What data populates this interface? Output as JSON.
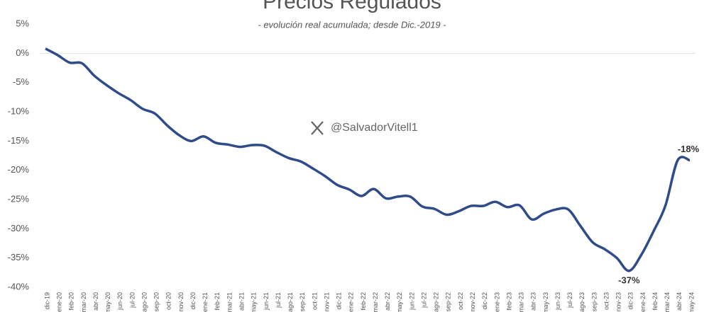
{
  "chart_data": {
    "type": "line",
    "title": "Precios Regulados",
    "subtitle": "- evolución real acumulada; desde Dic.-2019 -",
    "watermark": "@SalvadorVitell1",
    "categories": [
      "dic-19",
      "ene-20",
      "feb-20",
      "mar-20",
      "abr-20",
      "may-20",
      "jun-20",
      "jul-20",
      "ago-20",
      "sep-20",
      "oct-20",
      "nov-20",
      "dic-20",
      "ene-21",
      "feb-21",
      "mar-21",
      "abr-21",
      "may-21",
      "jun-21",
      "jul-21",
      "ago-21",
      "sep-21",
      "oct-21",
      "nov-21",
      "dic-21",
      "ene-22",
      "feb-22",
      "mar-22",
      "abr-22",
      "may-22",
      "jun-22",
      "jul-22",
      "ago-22",
      "sep-22",
      "oct-22",
      "nov-22",
      "dic-22",
      "ene-23",
      "feb-23",
      "mar-23",
      "abr-23",
      "may-23",
      "jun-23",
      "jul-23",
      "ago-23",
      "sep-23",
      "oct-23",
      "nov-23",
      "dic-23",
      "ene-24",
      "feb-24",
      "mar-24",
      "abr-24",
      "may-24"
    ],
    "values": [
      0.8,
      -0.3,
      -1.6,
      -1.7,
      -3.8,
      -5.4,
      -6.8,
      -8.0,
      -9.5,
      -10.3,
      -12.3,
      -14.0,
      -15.0,
      -14.2,
      -15.3,
      -15.6,
      -16.0,
      -15.7,
      -15.8,
      -16.9,
      -17.9,
      -18.5,
      -19.7,
      -21.0,
      -22.5,
      -23.3,
      -24.4,
      -23.2,
      -24.8,
      -24.5,
      -24.5,
      -26.2,
      -26.6,
      -27.6,
      -27.0,
      -26.1,
      -26.1,
      -25.4,
      -26.3,
      -26.0,
      -28.4,
      -27.4,
      -26.7,
      -26.7,
      -29.5,
      -32.3,
      -33.5,
      -35.0,
      -37.2,
      -34.5,
      -30.5,
      -26.0,
      -18.3,
      -18.3
    ],
    "value_labels": [
      null,
      null,
      null,
      null,
      null,
      null,
      null,
      null,
      null,
      null,
      null,
      null,
      null,
      null,
      null,
      null,
      null,
      null,
      null,
      null,
      null,
      null,
      null,
      null,
      null,
      null,
      null,
      null,
      null,
      null,
      null,
      null,
      null,
      null,
      null,
      null,
      null,
      null,
      null,
      null,
      null,
      null,
      null,
      null,
      null,
      null,
      null,
      null,
      "-37%",
      null,
      null,
      null,
      null,
      "-18%"
    ],
    "color": "#2f4b8a",
    "ylim": [
      -40,
      5
    ],
    "yticks": [
      {
        "value": 5,
        "label": "5%"
      },
      {
        "value": 0,
        "label": "0%"
      },
      {
        "value": -5,
        "label": "-5%"
      },
      {
        "value": -10,
        "label": "-10%"
      },
      {
        "value": -15,
        "label": "-15%"
      },
      {
        "value": -20,
        "label": "-20%"
      },
      {
        "value": -25,
        "label": "-25%"
      },
      {
        "value": -30,
        "label": "-30%"
      },
      {
        "value": -35,
        "label": "-35%"
      },
      {
        "value": -40,
        "label": "-40%"
      }
    ],
    "grid": false
  }
}
